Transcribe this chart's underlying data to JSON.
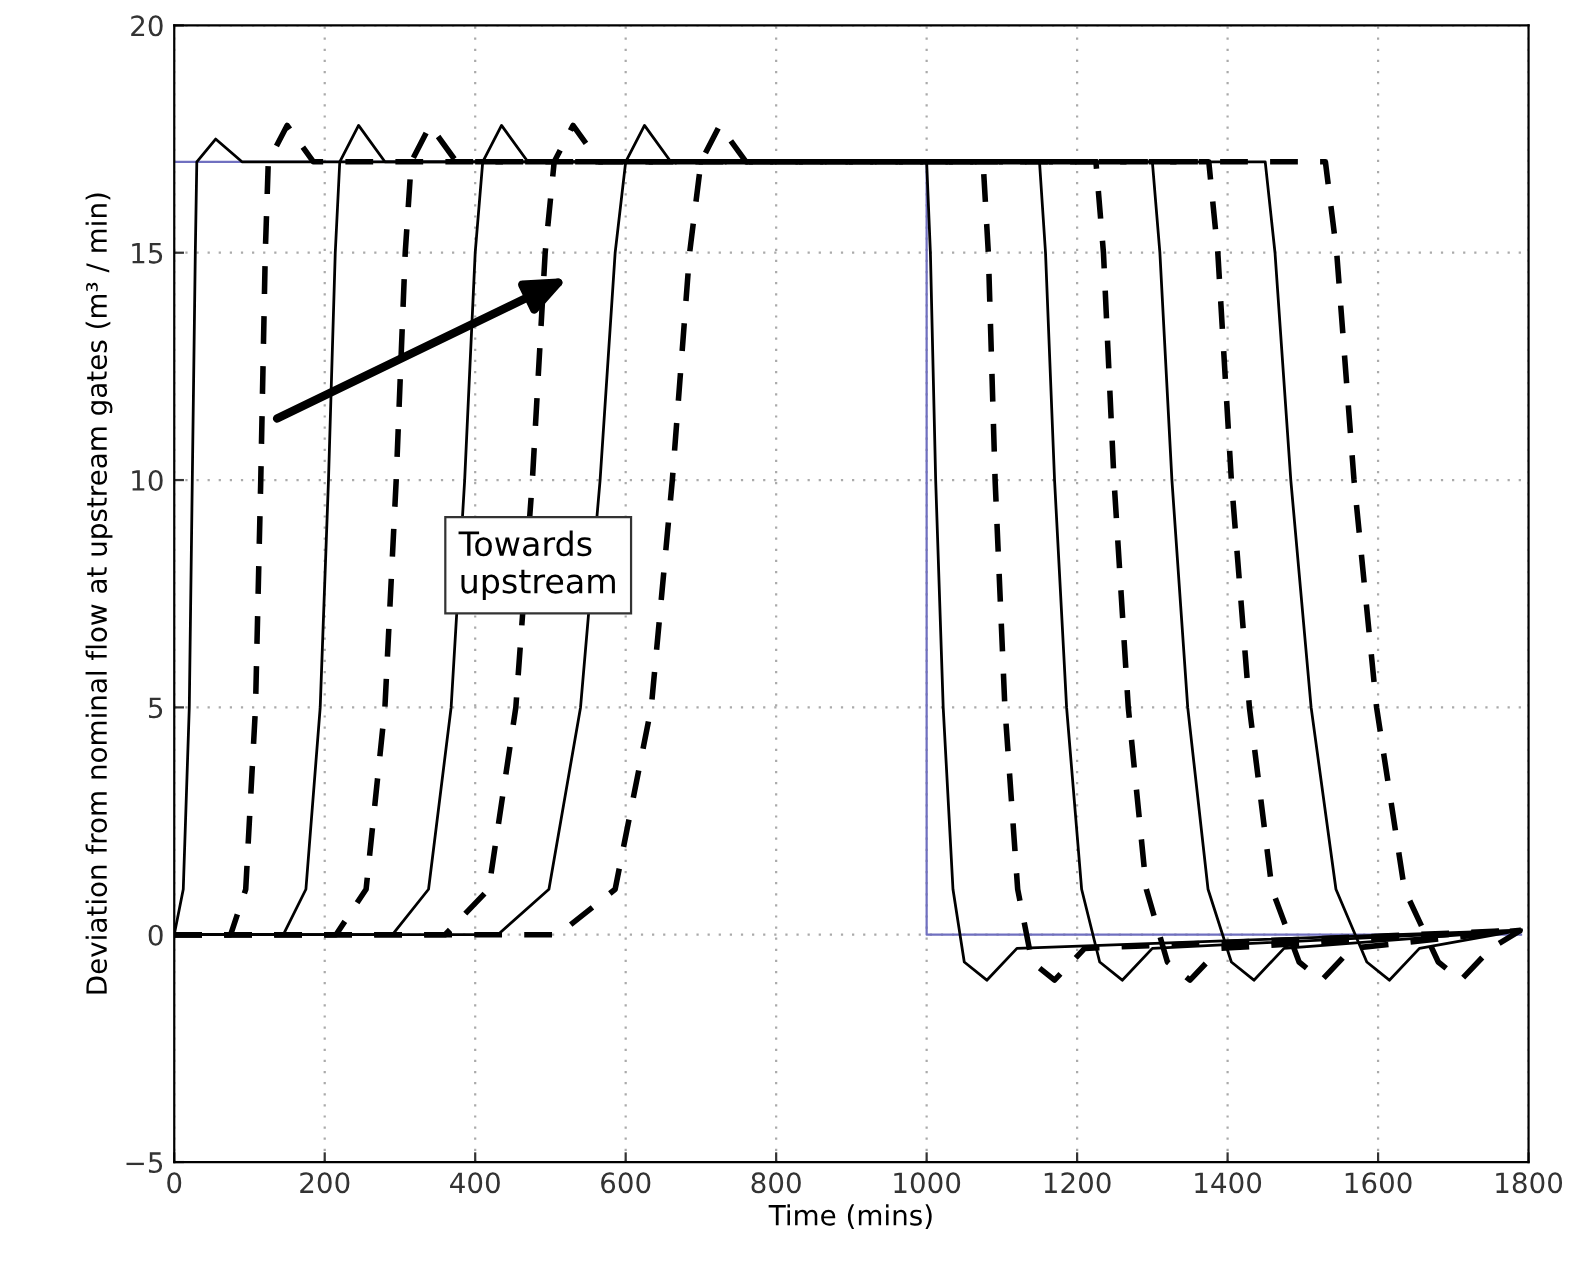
{
  "chart_data": {
    "type": "line",
    "xlabel": "Time (mins)",
    "ylabel": "Deviation from nominal flow at upstream gates (m³ / min)",
    "annotations": [
      "Towards upstream"
    ],
    "xlim": [
      0,
      1800
    ],
    "ylim": [
      -5,
      20
    ],
    "xticks": [
      0,
      200,
      400,
      600,
      800,
      1000,
      1200,
      1400,
      1600,
      1800
    ],
    "yticks": [
      -5,
      0,
      5,
      10,
      15,
      20
    ],
    "grid": true,
    "legend": false,
    "marker": "none",
    "series": [
      {
        "color": "#7070c0",
        "line_style": "solid",
        "x": [
          0,
          1000,
          1000,
          1790
        ],
        "values": [
          17,
          17,
          0,
          0
        ]
      },
      {
        "color": "#000000",
        "line_style": "solid",
        "x": [
          0,
          12,
          20,
          24,
          28,
          30,
          55,
          90,
          1000,
          1005,
          1012,
          1022,
          1035,
          1050,
          1080,
          1120,
          1790
        ],
        "values": [
          0,
          1,
          5,
          10,
          15,
          17,
          17.5,
          17,
          17,
          15,
          10,
          5,
          1,
          -0.6,
          -1,
          -0.3,
          0.1
        ]
      },
      {
        "color": "#000000",
        "line_style": "dashed",
        "x": [
          0,
          75,
          95,
          108,
          115,
          121,
          125,
          150,
          185,
          1075,
          1082,
          1091,
          1104,
          1121,
          1140,
          1170,
          1210,
          1790
        ],
        "values": [
          0,
          0,
          1,
          5,
          10,
          15,
          17,
          17.8,
          17,
          17,
          15,
          10,
          5,
          1,
          -0.6,
          -1,
          -0.3,
          0.1
        ]
      },
      {
        "color": "#000000",
        "line_style": "solid",
        "x": [
          0,
          145,
          175,
          194,
          205,
          214,
          220,
          245,
          280,
          1150,
          1158,
          1170,
          1186,
          1206,
          1230,
          1260,
          1300,
          1790
        ],
        "values": [
          0,
          0,
          1,
          5,
          10,
          15,
          17,
          17.8,
          17,
          17,
          15,
          10,
          5,
          1,
          -0.6,
          -1,
          -0.3,
          0.1
        ]
      },
      {
        "color": "#000000",
        "line_style": "dashed",
        "x": [
          0,
          215,
          255,
          280,
          295,
          307,
          315,
          340,
          375,
          1225,
          1235,
          1249,
          1268,
          1292,
          1320,
          1350,
          1390,
          1790
        ],
        "values": [
          0,
          0,
          1,
          5,
          10,
          15,
          17,
          17.8,
          17,
          17,
          15,
          10,
          5,
          1,
          -0.6,
          -1,
          -0.3,
          0.1
        ]
      },
      {
        "color": "#000000",
        "line_style": "solid",
        "x": [
          0,
          290,
          338,
          368,
          386,
          400,
          410,
          435,
          470,
          1300,
          1310,
          1326,
          1347,
          1374,
          1405,
          1435,
          1475,
          1790
        ],
        "values": [
          0,
          0,
          1,
          5,
          10,
          15,
          17,
          17.8,
          17,
          17,
          15,
          10,
          5,
          1,
          -0.6,
          -1,
          -0.3,
          0.1
        ]
      },
      {
        "color": "#000000",
        "line_style": "dashed",
        "x": [
          0,
          360,
          418,
          454,
          476,
          493,
          505,
          530,
          565,
          1375,
          1387,
          1405,
          1429,
          1459,
          1495,
          1525,
          1565,
          1790
        ],
        "values": [
          0,
          0,
          1,
          5,
          10,
          15,
          17,
          17.8,
          17,
          17,
          15,
          10,
          5,
          1,
          -0.6,
          -1,
          -0.3,
          0.1
        ]
      },
      {
        "color": "#000000",
        "line_style": "solid",
        "x": [
          0,
          430,
          498,
          540,
          566,
          586,
          600,
          625,
          660,
          1450,
          1463,
          1484,
          1511,
          1544,
          1585,
          1615,
          1655,
          1790
        ],
        "values": [
          0,
          0,
          1,
          5,
          10,
          15,
          17,
          17.8,
          17,
          17,
          15,
          10,
          5,
          1,
          -0.6,
          -1,
          -0.3,
          0.1
        ]
      },
      {
        "color": "#000000",
        "line_style": "dashed",
        "x": [
          0,
          510,
          586,
          634,
          662,
          685,
          700,
          725,
          760,
          1530,
          1545,
          1568,
          1598,
          1635,
          1680,
          1710,
          1750,
          1790
        ],
        "values": [
          0,
          0,
          1,
          5,
          10,
          15,
          17,
          17.8,
          17,
          17,
          15,
          10,
          5,
          1,
          -0.6,
          -1,
          -0.3,
          0.1
        ]
      }
    ]
  }
}
